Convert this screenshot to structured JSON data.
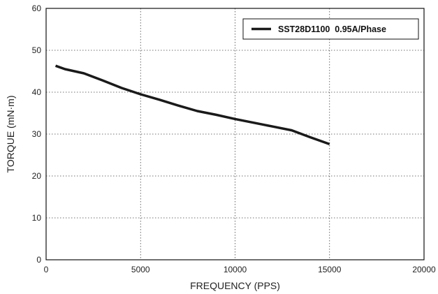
{
  "chart_data": {
    "type": "line",
    "title": "",
    "xlabel": "FREQUENCY (PPS)",
    "ylabel": "TORQUE (mN·m)",
    "xlim": [
      0,
      20000
    ],
    "ylim": [
      0,
      60
    ],
    "xticks": [
      0,
      5000,
      10000,
      15000,
      20000
    ],
    "yticks": [
      0,
      10,
      20,
      30,
      40,
      50,
      60
    ],
    "xtick_labels": [
      "0",
      "5000",
      "10000",
      "15000",
      "20000"
    ],
    "ytick_labels": [
      "0",
      "10",
      "20",
      "30",
      "40",
      "50",
      "60"
    ],
    "grid": true,
    "grid_style": "dotted",
    "legend_position": "top-right",
    "series": [
      {
        "name": "SST28D1100  0.95A/Phase",
        "color": "#1a1a1a",
        "x": [
          500,
          1000,
          2000,
          3000,
          4000,
          5000,
          6000,
          7000,
          8000,
          9000,
          10000,
          11000,
          12000,
          13000,
          14000,
          15000
        ],
        "y": [
          46.3,
          45.5,
          44.5,
          42.8,
          41.0,
          39.5,
          38.2,
          36.8,
          35.5,
          34.6,
          33.6,
          32.7,
          31.8,
          30.9,
          29.2,
          27.6
        ]
      }
    ]
  }
}
